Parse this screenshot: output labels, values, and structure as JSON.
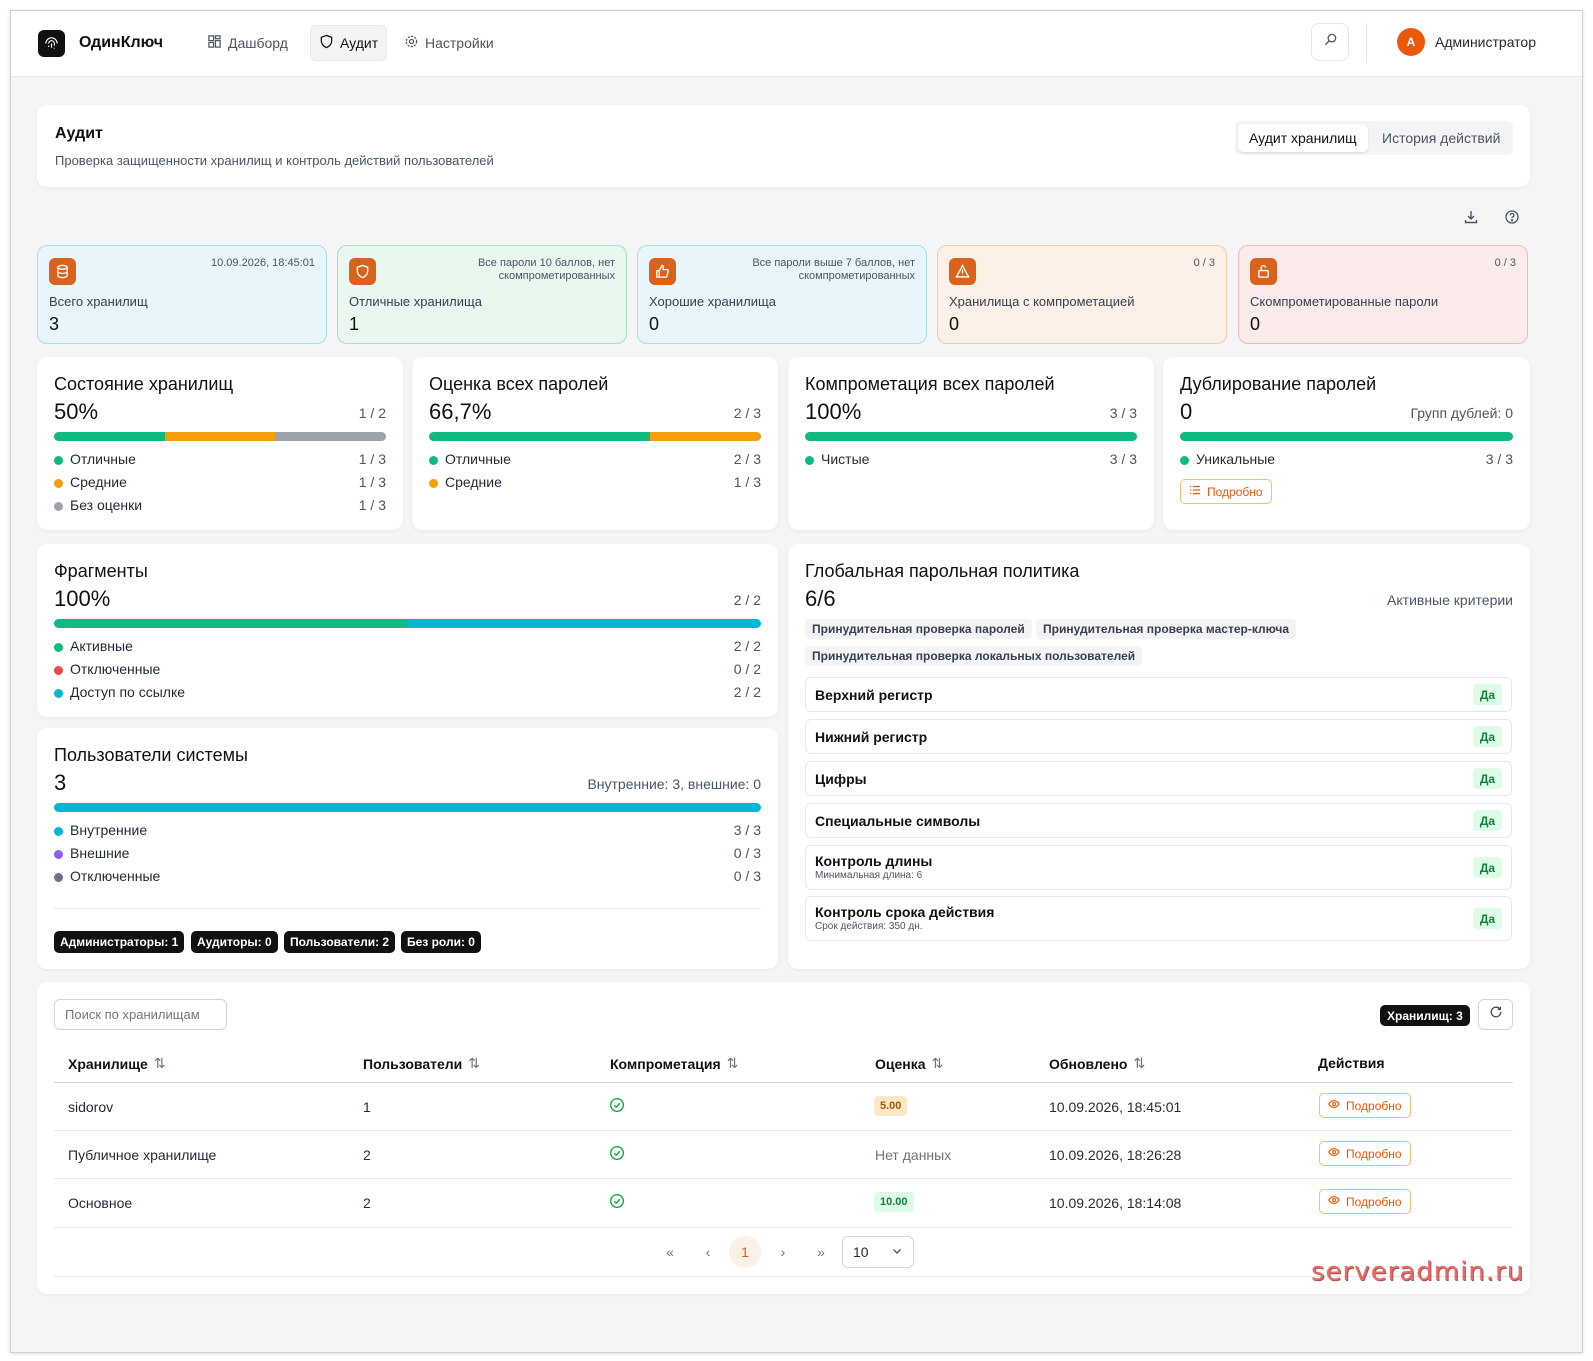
{
  "app": {
    "brand": "ОдинКлюч"
  },
  "nav": [
    {
      "label": "Дашборд"
    },
    {
      "label": "Аудит"
    },
    {
      "label": "Настройки"
    }
  ],
  "user": {
    "initial": "А",
    "name": "Администратор"
  },
  "page": {
    "title": "Аудит",
    "subtitle": "Проверка защищенности хранилищ и контроль действий пользователей",
    "tabs": [
      {
        "label": "Аудит хранилищ"
      },
      {
        "label": "История действий"
      }
    ]
  },
  "stats": [
    {
      "meta": "10.09.2026, 18:45:01",
      "label": "Всего хранилищ",
      "value": "3",
      "icon": "database-icon"
    },
    {
      "meta": "Все пароли 10 баллов, нет скомпрометированных",
      "label": "Отличные хранилища",
      "value": "1",
      "icon": "shield-icon"
    },
    {
      "meta": "Все пароли выше 7 баллов, нет скомпрометированных",
      "label": "Хорошие хранилища",
      "value": "0",
      "icon": "thumbs-up-icon"
    },
    {
      "meta": "0 / 3",
      "label": "Хранилища с компрометацией",
      "value": "0",
      "icon": "warning-icon"
    },
    {
      "meta": "0 / 3",
      "label": "Скомпрометированные пароли",
      "value": "0",
      "icon": "unlock-icon"
    }
  ],
  "metrics": {
    "vaults": {
      "title": "Состояние хранилищ",
      "value": "50%",
      "ratio": "1 / 2",
      "items": [
        {
          "label": "Отличные",
          "count": "1 / 3",
          "color": "#10b981",
          "fraction": 0.333
        },
        {
          "label": "Средние",
          "count": "1 / 3",
          "color": "#f59e0b",
          "fraction": 0.333
        },
        {
          "label": "Без оценки",
          "count": "1 / 3",
          "color": "#9ca3af",
          "fraction": 0.334
        }
      ]
    },
    "passwords": {
      "title": "Оценка всех паролей",
      "value": "66,7%",
      "ratio": "2 / 3",
      "items": [
        {
          "label": "Отличные",
          "count": "2 / 3",
          "color": "#10b981",
          "fraction": 0.667
        },
        {
          "label": "Средние",
          "count": "1 / 3",
          "color": "#f59e0b",
          "fraction": 0.333
        }
      ]
    },
    "compromise": {
      "title": "Компрометация всех паролей",
      "value": "100%",
      "ratio": "3 / 3",
      "items": [
        {
          "label": "Чистые",
          "count": "3 / 3",
          "color": "#10b981",
          "fraction": 1
        }
      ]
    },
    "duplicates": {
      "title": "Дублирование паролей",
      "value": "0",
      "ratio": "Групп дублей: 0",
      "items": [
        {
          "label": "Уникальные",
          "count": "3 / 3",
          "color": "#10b981",
          "fraction": 1
        }
      ],
      "details": "Подробно"
    },
    "fragments": {
      "title": "Фрагменты",
      "value": "100%",
      "ratio": "2 / 2",
      "items": [
        {
          "label": "Активные",
          "count": "2 / 2",
          "color": "#10b981",
          "fraction": 0.5
        },
        {
          "label": "Отключенные",
          "count": "0 / 2",
          "color": "#ef4444",
          "fraction": 0
        },
        {
          "label": "Доступ по ссылке",
          "count": "2 / 2",
          "color": "#06b6d4",
          "fraction": 0.5
        }
      ]
    },
    "users": {
      "title": "Пользователи системы",
      "value": "3",
      "ratio": "Внутренние: 3, внешние: 0",
      "items": [
        {
          "label": "Внутренние",
          "count": "3 / 3",
          "color": "#06b6d4",
          "fraction": 1
        },
        {
          "label": "Внешние",
          "count": "0 / 3",
          "color": "#8b5cf6",
          "fraction": 0
        },
        {
          "label": "Отключенные",
          "count": "0 / 3",
          "color": "#6b7280",
          "fraction": 0
        }
      ],
      "roles": [
        "Администраторы: 1",
        "Аудиторы: 0",
        "Пользователи: 2",
        "Без роли: 0"
      ]
    }
  },
  "policy": {
    "title": "Глобальная парольная политика",
    "value": "6/6",
    "right": "Активные критерии",
    "chips": [
      "Принудительная проверка паролей",
      "Принудительная проверка мастер-ключа",
      "Принудительная проверка локальных пользователей"
    ],
    "rules": [
      {
        "name": "Верхний регистр",
        "desc": "",
        "status": "Да"
      },
      {
        "name": "Нижний регистр",
        "desc": "",
        "status": "Да"
      },
      {
        "name": "Цифры",
        "desc": "",
        "status": "Да"
      },
      {
        "name": "Специальные символы",
        "desc": "",
        "status": "Да"
      },
      {
        "name": "Контроль длины",
        "desc": "Минимальная длина: 6",
        "status": "Да"
      },
      {
        "name": "Контроль срока действия",
        "desc": "Срок действия: 350 дн.",
        "status": "Да"
      }
    ]
  },
  "table": {
    "search_placeholder": "Поиск по хранилищам",
    "count_badge": "Хранилищ: 3",
    "columns": [
      "Хранилище",
      "Пользователи",
      "Компрометация",
      "Оценка",
      "Обновлено",
      "Действия"
    ],
    "rows": [
      {
        "name": "sidorov",
        "users": "1",
        "score": "5.00",
        "score_kind": "medium",
        "updated": "10.09.2026, 18:45:01",
        "action": "Подробно"
      },
      {
        "name": "Публичное хранилище",
        "users": "2",
        "score": "Нет данных",
        "score_kind": "none",
        "updated": "10.09.2026, 18:26:28",
        "action": "Подробно"
      },
      {
        "name": "Основное",
        "users": "2",
        "score": "10.00",
        "score_kind": "good",
        "updated": "10.09.2026, 18:14:08",
        "action": "Подробно"
      }
    ],
    "pagination": {
      "current": "1",
      "page_size": "10"
    }
  },
  "watermark": "serveradmin.ru"
}
